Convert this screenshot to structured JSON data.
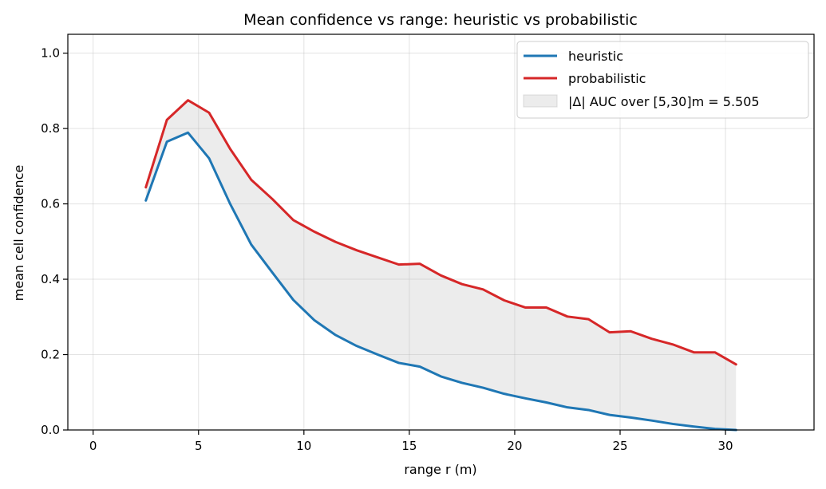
{
  "chart_data": {
    "type": "line",
    "title": "Mean confidence vs range: heuristic vs probabilistic",
    "xlabel": "range r (m)",
    "ylabel": "mean cell confidence",
    "xlim": [
      -1.2,
      34.2
    ],
    "ylim": [
      0.0,
      1.05
    ],
    "xticks": [
      0,
      5,
      10,
      15,
      20,
      25,
      30
    ],
    "yticks": [
      0.0,
      0.2,
      0.4,
      0.6,
      0.8,
      1.0
    ],
    "xtick_labels": [
      "0",
      "5",
      "10",
      "15",
      "20",
      "25",
      "30"
    ],
    "ytick_labels": [
      "0.0",
      "0.2",
      "0.4",
      "0.6",
      "0.8",
      "1.0"
    ],
    "grid": true,
    "legend_position": "upper right",
    "x": [
      2.5,
      3.5,
      4.5,
      5.5,
      6.5,
      7.5,
      8.5,
      9.5,
      10.5,
      11.5,
      12.5,
      13.5,
      14.5,
      15.5,
      16.5,
      17.5,
      18.5,
      19.5,
      20.5,
      21.5,
      22.5,
      23.5,
      24.5,
      25.5,
      26.5,
      27.5,
      28.5,
      29.5,
      30.5
    ],
    "series": [
      {
        "name": "heuristic",
        "color": "#1f77b4",
        "values": [
          0.609,
          0.765,
          0.789,
          0.721,
          0.6,
          0.492,
          0.418,
          0.345,
          0.291,
          0.252,
          0.223,
          0.2,
          0.178,
          0.168,
          0.142,
          0.125,
          0.112,
          0.096,
          0.084,
          0.073,
          0.06,
          0.053,
          0.04,
          0.033,
          0.025,
          0.016,
          0.009,
          0.003,
          0.0
        ]
      },
      {
        "name": "probabilistic",
        "color": "#d62728",
        "values": [
          0.644,
          0.823,
          0.875,
          0.842,
          0.746,
          0.664,
          0.613,
          0.557,
          0.526,
          0.499,
          0.477,
          0.458,
          0.439,
          0.441,
          0.41,
          0.387,
          0.373,
          0.344,
          0.325,
          0.325,
          0.301,
          0.294,
          0.259,
          0.262,
          0.242,
          0.227,
          0.206,
          0.206,
          0.174
        ]
      }
    ],
    "fill": {
      "label": "|Δ| AUC over [5,30]m = 5.505",
      "color": "#bbbbbb"
    }
  }
}
